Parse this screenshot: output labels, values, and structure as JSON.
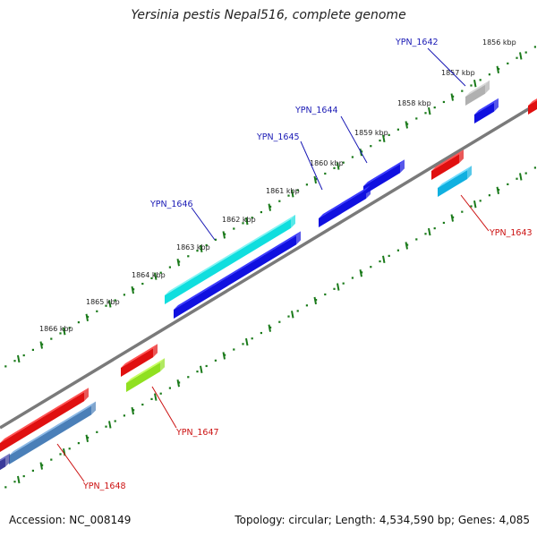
{
  "title": "Yersinia pestis Nepal516, complete genome",
  "footer": {
    "accession": "Accession: NC_008149",
    "summary": "Topology: circular; Length: 4,534,590 bp; Genes: 4,085"
  },
  "ticks": [
    "1856 kbp",
    "1857 kbp",
    "1858 kbp",
    "1859 kbp",
    "1860 kbp",
    "1861 kbp",
    "1862 kbp",
    "1863 kbp",
    "1864 kbp",
    "1865 kbp",
    "1866 kbp"
  ],
  "genes_outer": [
    "YPN_1642",
    "YPN_1644",
    "YPN_1645",
    "YPN_1646"
  ],
  "genes_inner": [
    "YPN_1643",
    "YPN_1647",
    "YPN_1648"
  ],
  "colors": {
    "outer_label": "#1a1ab5",
    "inner_label": "#cc1111",
    "backbone": "#808080",
    "tick": "#1a7a1a"
  }
}
